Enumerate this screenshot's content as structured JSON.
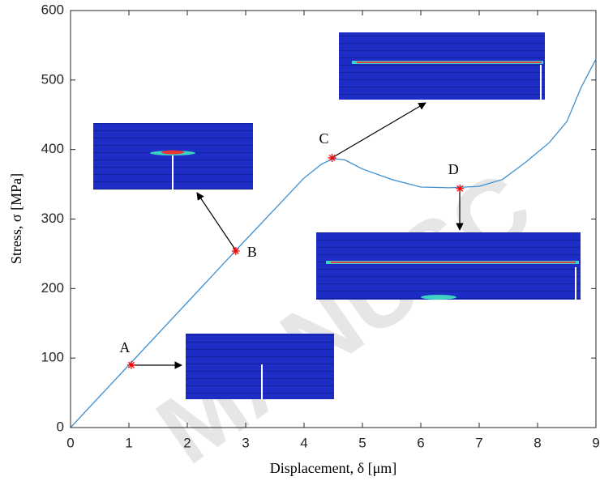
{
  "chart_data": {
    "type": "line",
    "xlabel": "Displacement, δ [μm]",
    "ylabel": "Stress, σ [MPa]",
    "x": [
      0,
      1,
      2,
      3,
      4,
      4.3,
      4.5,
      4.7,
      5,
      5.5,
      6,
      6.5,
      7,
      7.4,
      7.8,
      8.2,
      8.5,
      8.75,
      9
    ],
    "values": [
      0,
      90,
      180,
      270,
      359,
      379,
      387,
      385,
      372,
      357,
      346,
      345,
      347,
      357,
      382,
      410,
      440,
      490,
      530
    ],
    "color": "#3d8fd1",
    "xlim": [
      0,
      9
    ],
    "xticks": [
      0,
      1,
      2,
      3,
      4,
      5,
      6,
      7,
      8,
      9
    ],
    "ylim": [
      0,
      600
    ],
    "yticks": [
      0,
      100,
      200,
      300,
      400,
      500,
      600
    ],
    "grid": false,
    "annotations": [
      {
        "label": "A",
        "x": 1.04,
        "y": 90
      },
      {
        "label": "B",
        "x": 2.83,
        "y": 254
      },
      {
        "label": "C",
        "x": 4.48,
        "y": 388
      },
      {
        "label": "D",
        "x": 6.67,
        "y": 344
      }
    ],
    "annotation_color": "#ff0000",
    "watermark": "MANUSC"
  }
}
